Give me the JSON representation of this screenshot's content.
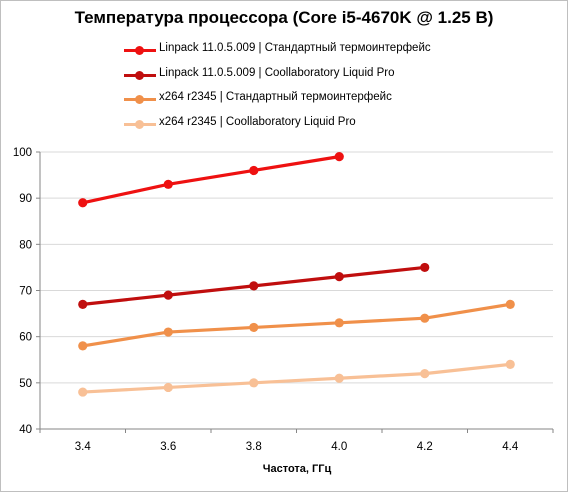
{
  "chart_data": {
    "type": "line",
    "title": "Температура процессора (Core i5-4670K @ 1.25 В)",
    "xlabel": "Частота,  ГГц",
    "ylabel": "",
    "xlim": [
      3.3,
      4.5
    ],
    "ylim": [
      40,
      100
    ],
    "x_ticks": [
      "3.4",
      "3.6",
      "3.8",
      "4.0",
      "4.2",
      "4.4"
    ],
    "y_ticks": [
      "40",
      "50",
      "60",
      "70",
      "80",
      "90",
      "100"
    ],
    "grid": true,
    "legend_position": "top",
    "series": [
      {
        "name": "Linpack 11.0.5.009 | Стандартный термоинтерфейс",
        "color": "#ee1111",
        "x": [
          3.4,
          3.6,
          3.8,
          4.0
        ],
        "values": [
          89,
          93,
          96,
          99
        ]
      },
      {
        "name": "Linpack 11.0.5.009 | Coollaboratory Liquid Pro",
        "color": "#c00e0e",
        "x": [
          3.4,
          3.6,
          3.8,
          4.0,
          4.2
        ],
        "values": [
          67,
          69,
          71,
          73,
          75
        ]
      },
      {
        "name": "x264 r2345 | Стандартный термоинтерфейс",
        "color": "#f0904a",
        "x": [
          3.4,
          3.6,
          3.8,
          4.0,
          4.2,
          4.4
        ],
        "values": [
          58,
          61,
          62,
          63,
          64,
          67
        ]
      },
      {
        "name": "x264 r2345 | Coollaboratory Liquid Pro",
        "color": "#f8c096",
        "x": [
          3.4,
          3.6,
          3.8,
          4.0,
          4.2,
          4.4
        ],
        "values": [
          48,
          49,
          50,
          51,
          52,
          54
        ]
      }
    ]
  }
}
